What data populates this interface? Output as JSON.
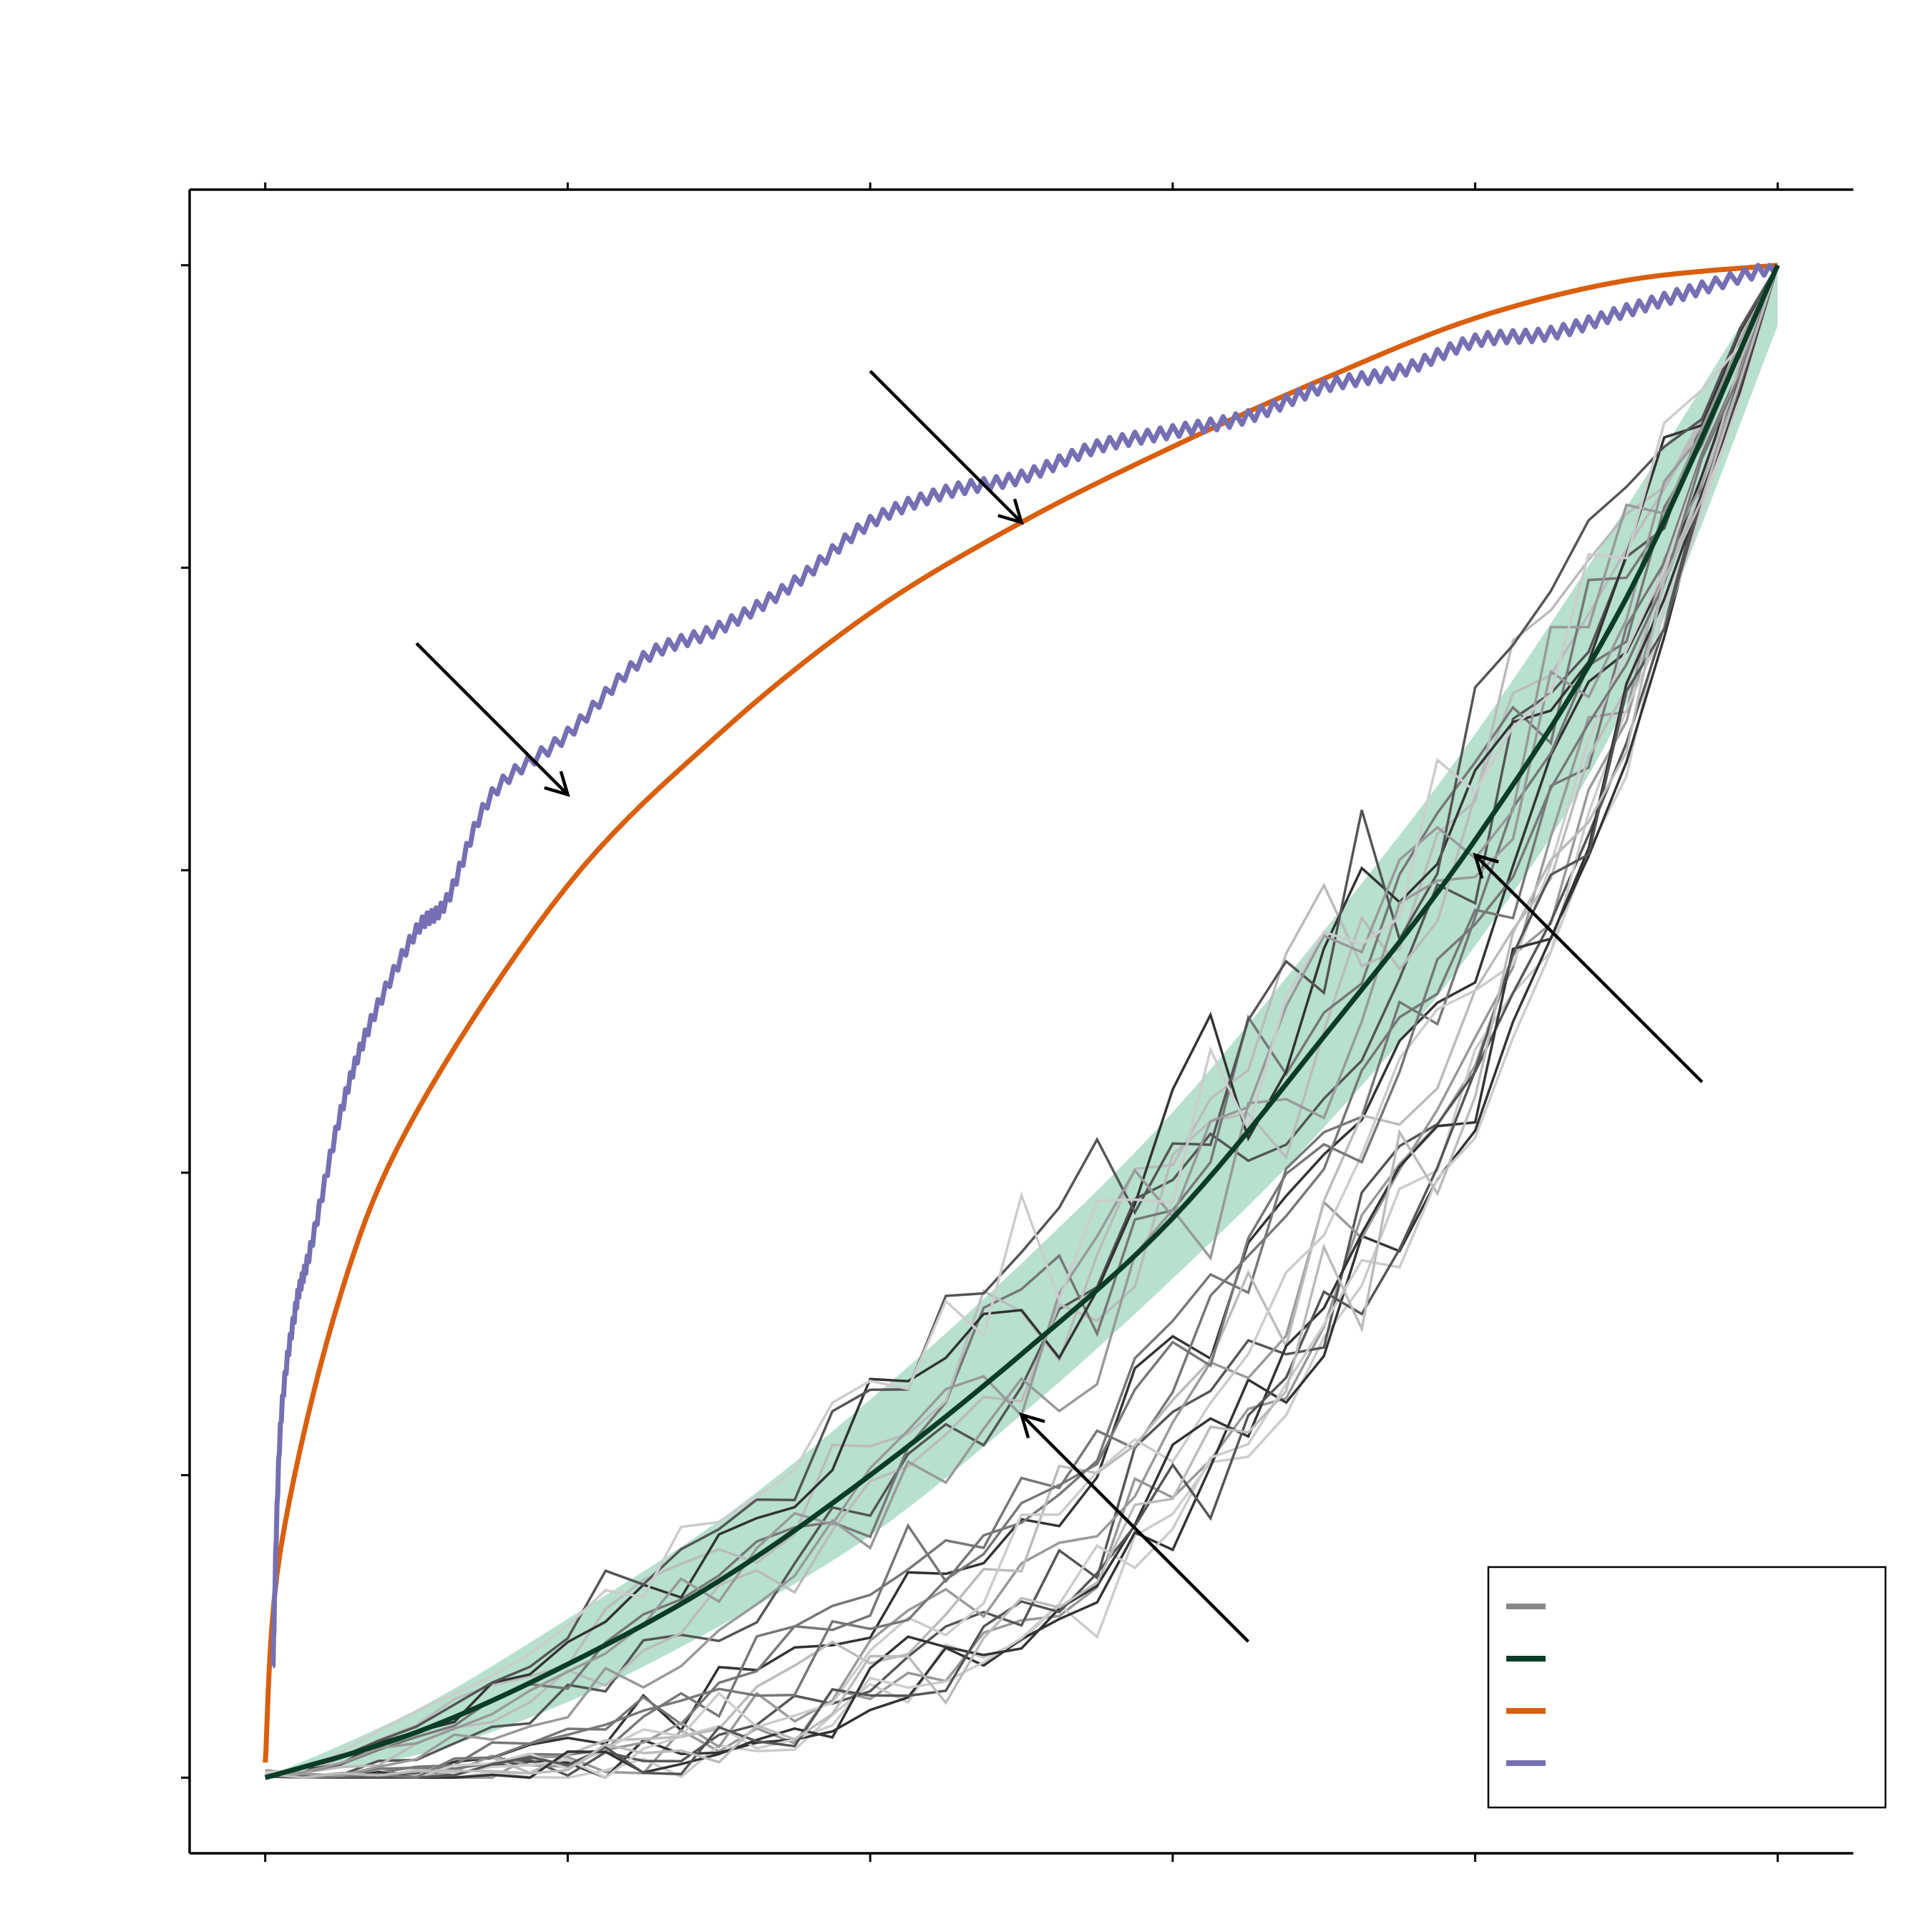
{
  "chart_data": {
    "type": "line",
    "title": "",
    "xlabel": "",
    "ylabel": "",
    "xlim": [
      -0.05,
      1.05
    ],
    "ylim": [
      -0.05,
      1.05
    ],
    "x_ticks": [
      0,
      0.2,
      0.4,
      0.6,
      0.8,
      1.0
    ],
    "y_ticks": [
      0,
      0.2,
      0.4,
      0.6,
      0.8,
      1.0
    ],
    "tick_labels_visible": false,
    "grid": false,
    "legend_position": "bottom-right",
    "series": [
      {
        "role": "sample-curves",
        "color": "#888888",
        "count": 24,
        "values": []
      },
      {
        "role": "mean-curve",
        "color": "#0b3d26",
        "x": [
          0,
          0.1,
          0.2,
          0.3,
          0.4,
          0.5,
          0.6,
          0.7,
          0.8,
          0.9,
          1.0
        ],
        "y": [
          0,
          0.03,
          0.075,
          0.13,
          0.2,
          0.28,
          0.37,
          0.49,
          0.62,
          0.78,
          1.0
        ]
      },
      {
        "role": "confidence-band",
        "color": "#9fd6bd",
        "x": [
          0,
          0.1,
          0.2,
          0.3,
          0.4,
          0.5,
          0.6,
          0.7,
          0.8,
          0.9,
          1.0
        ],
        "y_low": [
          0,
          0.015,
          0.05,
          0.1,
          0.16,
          0.24,
          0.33,
          0.43,
          0.55,
          0.71,
          0.96
        ],
        "y_high": [
          0,
          0.045,
          0.105,
          0.17,
          0.25,
          0.34,
          0.44,
          0.56,
          0.69,
          0.84,
          1.0
        ]
      },
      {
        "role": "theoretical-curve",
        "color": "#d95f0e",
        "x": [
          0,
          0.01,
          0.05,
          0.1,
          0.2,
          0.3,
          0.4,
          0.5,
          0.6,
          0.7,
          0.8,
          0.9,
          1.0
        ],
        "y": [
          0.01,
          0.15,
          0.32,
          0.44,
          0.59,
          0.69,
          0.77,
          0.83,
          0.88,
          0.925,
          0.965,
          0.99,
          1.0
        ]
      },
      {
        "role": "empirical-curve",
        "color": "#7570b3",
        "x": [
          0.005,
          0.01,
          0.02,
          0.03,
          0.05,
          0.07,
          0.1,
          0.12,
          0.15,
          0.2,
          0.25,
          0.3,
          0.35,
          0.4,
          0.45,
          0.5,
          0.55,
          0.6,
          0.65,
          0.7,
          0.75,
          0.8,
          0.85,
          0.9,
          0.95,
          1.0
        ],
        "y": [
          0.07,
          0.23,
          0.31,
          0.35,
          0.44,
          0.5,
          0.56,
          0.58,
          0.65,
          0.69,
          0.74,
          0.76,
          0.79,
          0.83,
          0.85,
          0.86,
          0.88,
          0.89,
          0.9,
          0.92,
          0.93,
          0.95,
          0.955,
          0.97,
          0.985,
          1.0
        ]
      }
    ],
    "arrows": [
      {
        "from": [
          0.1,
          0.75
        ],
        "to": [
          0.2,
          0.65
        ],
        "label": ""
      },
      {
        "from": [
          0.4,
          0.93
        ],
        "to": [
          0.5,
          0.83
        ],
        "label": ""
      },
      {
        "from": [
          0.95,
          0.46
        ],
        "to": [
          0.8,
          0.61
        ],
        "label": ""
      },
      {
        "from": [
          0.65,
          0.09
        ],
        "to": [
          0.5,
          0.24
        ],
        "label": ""
      }
    ],
    "legend": [
      {
        "key": "sample-curves",
        "color": "#888888",
        "label": ""
      },
      {
        "key": "mean-curve",
        "color": "#0b3d26",
        "label": ""
      },
      {
        "key": "theoretical-curve",
        "color": "#d95f0e",
        "label": ""
      },
      {
        "key": "empirical-curve",
        "color": "#7570b3",
        "label": ""
      }
    ]
  }
}
